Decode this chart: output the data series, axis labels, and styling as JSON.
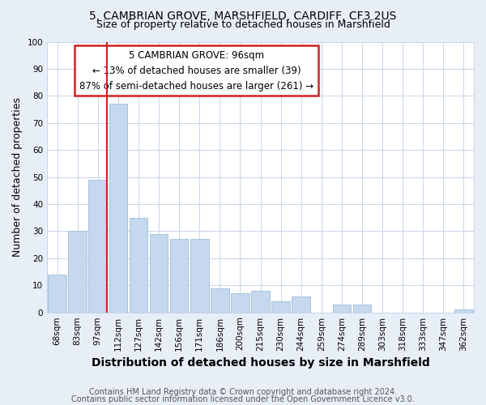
{
  "title1": "5, CAMBRIAN GROVE, MARSHFIELD, CARDIFF, CF3 2US",
  "title2": "Size of property relative to detached houses in Marshfield",
  "xlabel": "Distribution of detached houses by size in Marshfield",
  "ylabel": "Number of detached properties",
  "categories": [
    "68sqm",
    "83sqm",
    "97sqm",
    "112sqm",
    "127sqm",
    "142sqm",
    "156sqm",
    "171sqm",
    "186sqm",
    "200sqm",
    "215sqm",
    "230sqm",
    "244sqm",
    "259sqm",
    "274sqm",
    "289sqm",
    "303sqm",
    "318sqm",
    "333sqm",
    "347sqm",
    "362sqm"
  ],
  "values": [
    14,
    30,
    49,
    77,
    35,
    29,
    27,
    27,
    9,
    7,
    8,
    4,
    6,
    0,
    3,
    3,
    0,
    0,
    0,
    0,
    1
  ],
  "bar_color": "#c5d8ee",
  "bar_edge_color": "#a0bdd8",
  "vline_x_index": 2,
  "vline_color": "#cc2222",
  "annotation_text": "5 CAMBRIAN GROVE: 96sqm\n← 13% of detached houses are smaller (39)\n87% of semi-detached houses are larger (261) →",
  "annotation_box_color": "#ffffff",
  "annotation_box_edge": "#cc2222",
  "ylim": [
    0,
    100
  ],
  "yticks": [
    0,
    10,
    20,
    30,
    40,
    50,
    60,
    70,
    80,
    90,
    100
  ],
  "footer1": "Contains HM Land Registry data © Crown copyright and database right 2024.",
  "footer2": "Contains public sector information licensed under the Open Government Licence v3.0.",
  "bg_color": "#e8eef8",
  "plot_bg_color": "#ffffff",
  "grid_color": "#c8d4e8",
  "title_fontsize": 10,
  "subtitle_fontsize": 9,
  "axis_label_fontsize": 9,
  "tick_fontsize": 7.5,
  "footer_fontsize": 7,
  "annotation_fontsize": 8.5
}
